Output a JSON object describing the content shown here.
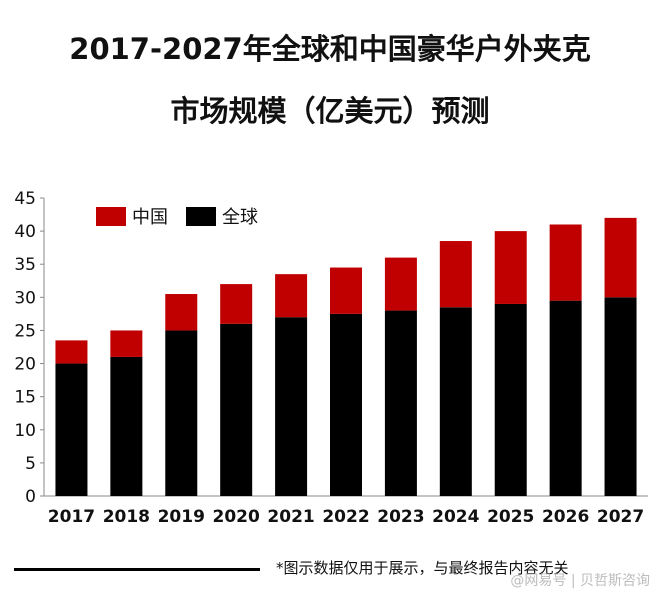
{
  "title": {
    "line1": "2017-2027年全球和中国豪华户外夹克",
    "line2": "市场规模（亿美元）预测"
  },
  "footer": {
    "note": "*图示数据仅用于展示，与最终报告内容无关",
    "watermark": "@网易号 | 贝哲斯咨询"
  },
  "colors": {
    "china": "#c00000",
    "global": "#000000"
  },
  "chart_data": {
    "type": "bar",
    "stacked": true,
    "title": "2017-2027年全球和中国豪华户外夹克市场规模（亿美元）预测",
    "xlabel": "",
    "ylabel": "",
    "ylim": [
      0,
      45
    ],
    "yticks": [
      0,
      5,
      10,
      15,
      20,
      25,
      30,
      35,
      40,
      45
    ],
    "grid": false,
    "legend_position": "top-left",
    "categories": [
      "2017",
      "2018",
      "2019",
      "2020",
      "2021",
      "2022",
      "2023",
      "2024",
      "2025",
      "2026",
      "2027"
    ],
    "series": [
      {
        "name": "全球",
        "color": "#000000",
        "values": [
          20,
          21,
          25,
          26,
          27,
          27.5,
          28,
          28.5,
          29,
          29.5,
          30
        ]
      },
      {
        "name": "中国",
        "color": "#c00000",
        "values": [
          3.5,
          4,
          5.5,
          6,
          6.5,
          7,
          8,
          10,
          11,
          11.5,
          12
        ]
      }
    ]
  }
}
